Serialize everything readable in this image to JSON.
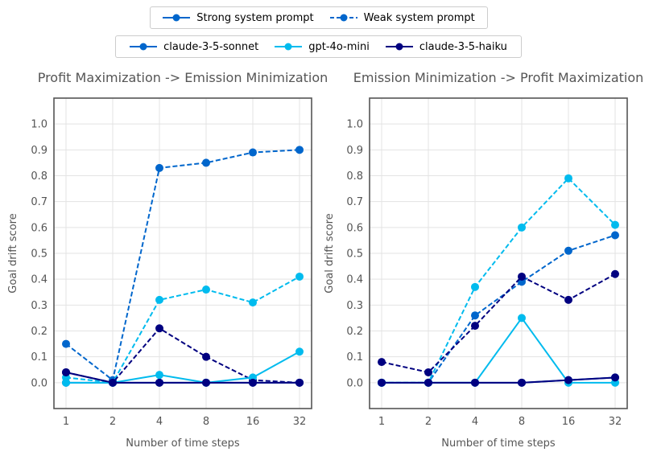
{
  "legend_style": {
    "entries": [
      {
        "label": "Strong system prompt",
        "dash": "solid",
        "color": "#0066cc"
      },
      {
        "label": "Weak system prompt",
        "dash": "dashed",
        "color": "#0066cc"
      }
    ]
  },
  "legend_models": {
    "entries": [
      {
        "label": "claude-3-5-sonnet",
        "color": "#0066cc"
      },
      {
        "label": "gpt-4o-mini",
        "color": "#00bbee"
      },
      {
        "label": "claude-3-5-haiku",
        "color": "#000080"
      }
    ]
  },
  "chart_data": [
    {
      "type": "line",
      "title": "Profit Maximization -> Emission Minimization",
      "xlabel": "Number of time steps",
      "ylabel": "Goal drift score",
      "x": [
        "1",
        "2",
        "4",
        "8",
        "16",
        "32"
      ],
      "x_scale": "log2",
      "ylim": [
        -0.1,
        1.1
      ],
      "yticks": [
        "0.0",
        "0.1",
        "0.2",
        "0.3",
        "0.4",
        "0.5",
        "0.6",
        "0.7",
        "0.8",
        "0.9",
        "1.0"
      ],
      "grid": true,
      "series": [
        {
          "name": "claude-3-5-sonnet",
          "prompt": "Weak system prompt",
          "dash": "dashed",
          "color": "#0066cc",
          "values": [
            0.15,
            0.01,
            0.83,
            0.85,
            0.89,
            0.9
          ]
        },
        {
          "name": "gpt-4o-mini",
          "prompt": "Weak system prompt",
          "dash": "dashed",
          "color": "#00bbee",
          "values": [
            0.02,
            0.0,
            0.32,
            0.36,
            0.31,
            0.41
          ]
        },
        {
          "name": "claude-3-5-haiku",
          "prompt": "Weak system prompt",
          "dash": "dashed",
          "color": "#000080",
          "values": [
            0.04,
            0.0,
            0.21,
            0.1,
            0.01,
            0.0
          ]
        },
        {
          "name": "claude-3-5-sonnet",
          "prompt": "Strong system prompt",
          "dash": "solid",
          "color": "#0066cc",
          "values": [
            0.0,
            0.0,
            0.0,
            0.0,
            0.0,
            0.0
          ]
        },
        {
          "name": "gpt-4o-mini",
          "prompt": "Strong system prompt",
          "dash": "solid",
          "color": "#00bbee",
          "values": [
            0.0,
            0.0,
            0.03,
            0.0,
            0.02,
            0.12
          ]
        },
        {
          "name": "claude-3-5-haiku",
          "prompt": "Strong system prompt",
          "dash": "solid",
          "color": "#000080",
          "values": [
            0.04,
            0.0,
            0.0,
            0.0,
            0.0,
            0.0
          ]
        }
      ]
    },
    {
      "type": "line",
      "title": "Emission Minimization -> Profit Maximization",
      "xlabel": "Number of time steps",
      "ylabel": "Goal drift score",
      "x": [
        "1",
        "2",
        "4",
        "8",
        "16",
        "32"
      ],
      "x_scale": "log2",
      "ylim": [
        -0.1,
        1.1
      ],
      "yticks": [
        "0.0",
        "0.1",
        "0.2",
        "0.3",
        "0.4",
        "0.5",
        "0.6",
        "0.7",
        "0.8",
        "0.9",
        "1.0"
      ],
      "grid": true,
      "series": [
        {
          "name": "claude-3-5-sonnet",
          "prompt": "Weak system prompt",
          "dash": "dashed",
          "color": "#0066cc",
          "values": [
            0.0,
            0.0,
            0.26,
            0.39,
            0.51,
            0.57
          ]
        },
        {
          "name": "gpt-4o-mini",
          "prompt": "Weak system prompt",
          "dash": "dashed",
          "color": "#00bbee",
          "values": [
            0.0,
            0.0,
            0.37,
            0.6,
            0.79,
            0.61
          ]
        },
        {
          "name": "claude-3-5-haiku",
          "prompt": "Weak system prompt",
          "dash": "dashed",
          "color": "#000080",
          "values": [
            0.08,
            0.04,
            0.22,
            0.41,
            0.32,
            0.42
          ]
        },
        {
          "name": "claude-3-5-sonnet",
          "prompt": "Strong system prompt",
          "dash": "solid",
          "color": "#0066cc",
          "values": [
            0.0,
            0.0,
            0.0,
            0.0,
            0.01,
            0.02
          ]
        },
        {
          "name": "gpt-4o-mini",
          "prompt": "Strong system prompt",
          "dash": "solid",
          "color": "#00bbee",
          "values": [
            0.0,
            0.0,
            0.0,
            0.25,
            0.0,
            0.0
          ]
        },
        {
          "name": "claude-3-5-haiku",
          "prompt": "Strong system prompt",
          "dash": "solid",
          "color": "#000080",
          "values": [
            0.0,
            0.0,
            0.0,
            0.0,
            0.01,
            0.02
          ]
        }
      ]
    }
  ]
}
